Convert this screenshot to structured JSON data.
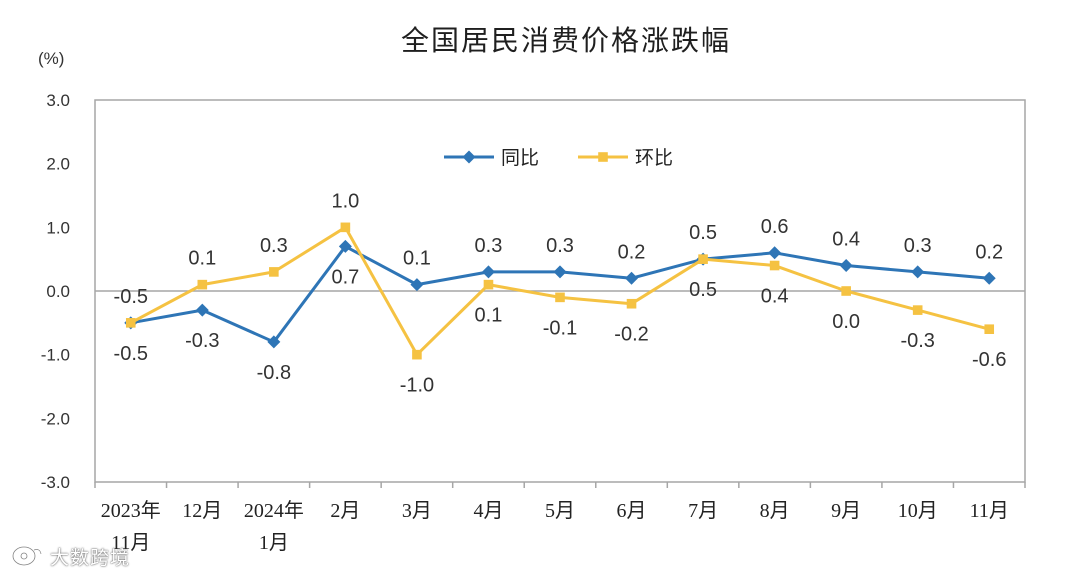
{
  "chart_data": {
    "type": "line",
    "title": "全国居民消费价格涨跌幅",
    "ylabel": "(%)",
    "xlabel": "",
    "categories": [
      "2023年\n11月",
      "12月",
      "2024年\n1月",
      "2月",
      "3月",
      "4月",
      "5月",
      "6月",
      "7月",
      "8月",
      "9月",
      "10月",
      "11月"
    ],
    "series": [
      {
        "name": "同比",
        "color": "#2E75B6",
        "marker": "diamond",
        "values": [
          -0.5,
          -0.3,
          -0.8,
          0.7,
          0.1,
          0.3,
          0.3,
          0.2,
          0.5,
          0.6,
          0.4,
          0.3,
          0.2
        ]
      },
      {
        "name": "环比",
        "color": "#F5C242",
        "marker": "square",
        "values": [
          -0.5,
          0.1,
          0.3,
          1.0,
          -1.0,
          0.1,
          -0.1,
          -0.2,
          0.5,
          0.4,
          0.0,
          -0.3,
          -0.6
        ]
      }
    ],
    "ylim": [
      -3,
      3
    ],
    "yticks": [
      3,
      2,
      1,
      0,
      -1,
      -2,
      -3
    ],
    "grid": false,
    "legend": "inside-top-center",
    "data_labels": true,
    "axis_color": "#A6A6A6"
  },
  "watermark": {
    "text": "大数跨境",
    "icon": "watermark-logo-icon"
  }
}
